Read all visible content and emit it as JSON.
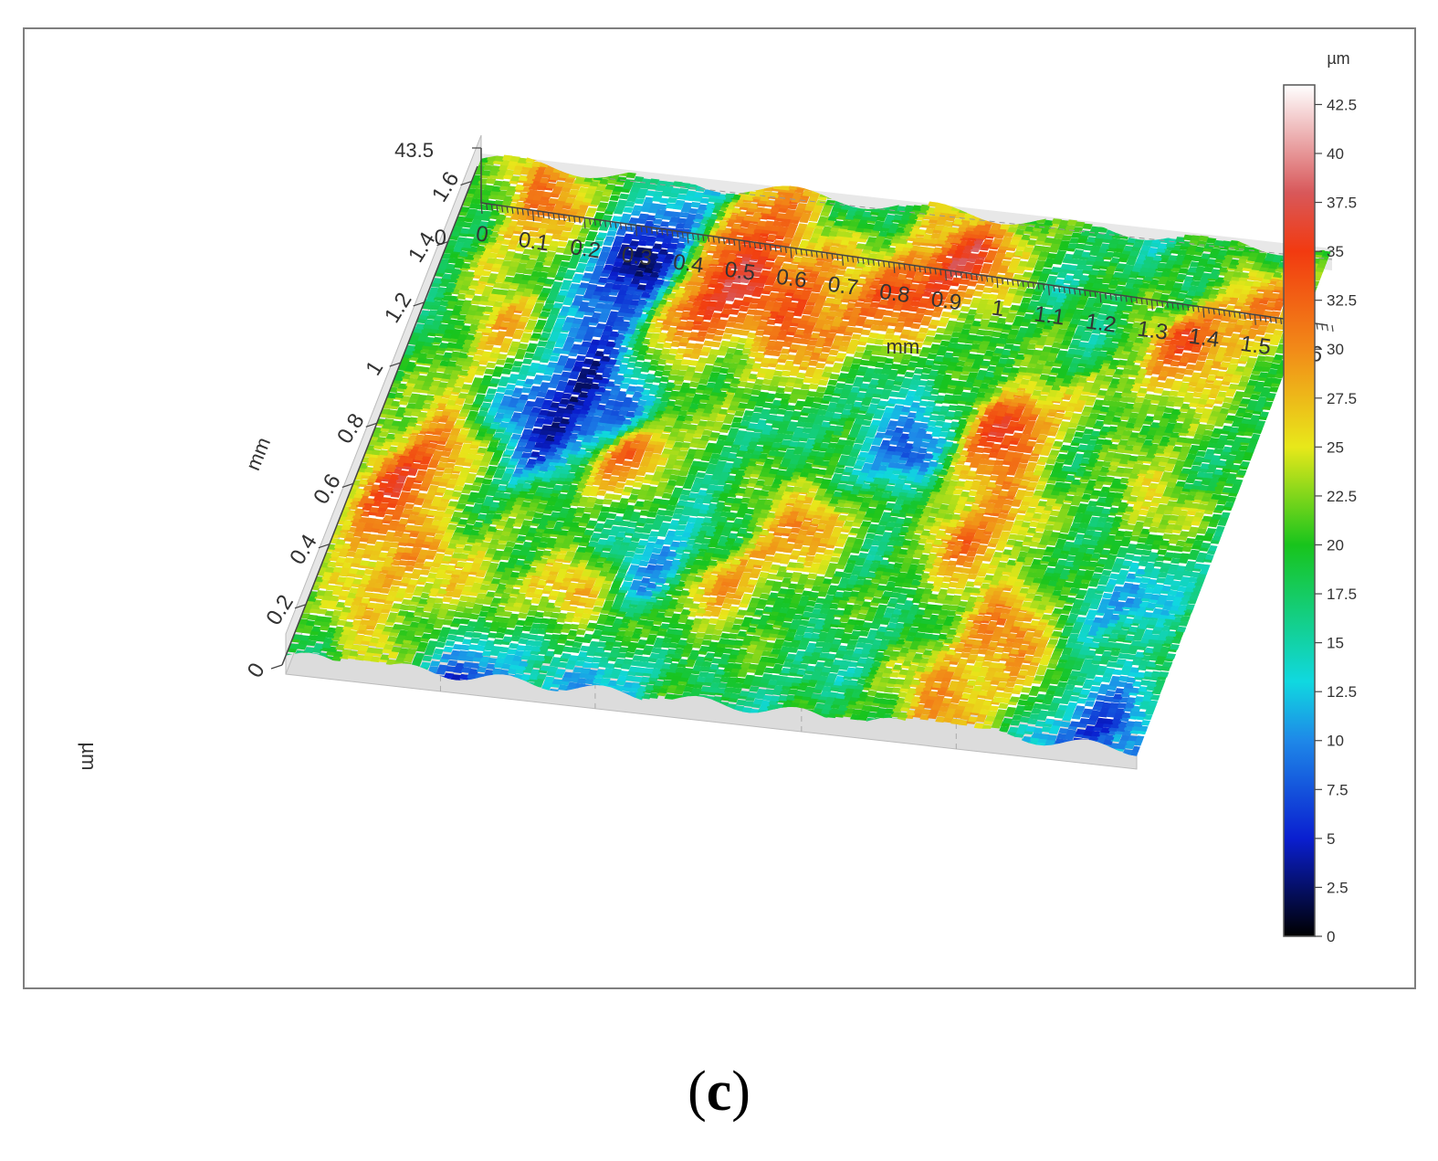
{
  "chart_data": {
    "type": "heatmap",
    "subtype": "3d-surface",
    "x_axis": {
      "label": "mm",
      "range": [
        0,
        1.65
      ],
      "ticks": [
        "0",
        "0.1",
        "0.2",
        "0.3",
        "0.4",
        "0.5",
        "0.6",
        "0.7",
        "0.8",
        "0.9",
        "1",
        "1.1",
        "1.2",
        "1.3",
        "1.4",
        "1.5",
        "1.6"
      ]
    },
    "y_axis": {
      "label": "mm",
      "range": [
        0,
        1.65
      ],
      "ticks": [
        "0",
        "0.2",
        "0.4",
        "0.6",
        "0.8",
        "1",
        "1.2",
        "1.4",
        "1.6"
      ]
    },
    "z_axis": {
      "label": "µm",
      "range": [
        0,
        43.5
      ],
      "ticks": [
        "0",
        "43.5"
      ]
    },
    "colorbar": {
      "unit": "µm",
      "range": [
        0,
        43.5
      ],
      "ticks": [
        "0",
        "2.5",
        "5",
        "7.5",
        "10",
        "12.5",
        "15",
        "17.5",
        "20",
        "22.5",
        "25",
        "27.5",
        "30",
        "32.5",
        "35",
        "37.5",
        "40",
        "42.5"
      ],
      "stops": [
        {
          "value": 0,
          "color": "#000000"
        },
        {
          "value": 5,
          "color": "#0a1fd0"
        },
        {
          "value": 10,
          "color": "#1e88e8"
        },
        {
          "value": 13,
          "color": "#10d8e0"
        },
        {
          "value": 20,
          "color": "#18c41c"
        },
        {
          "value": 25,
          "color": "#e8e81a"
        },
        {
          "value": 30,
          "color": "#f28a18"
        },
        {
          "value": 35,
          "color": "#f23a10"
        },
        {
          "value": 38,
          "color": "#d8585a"
        },
        {
          "value": 43.5,
          "color": "#ffffff"
        }
      ]
    },
    "features": [
      {
        "x": 0.16,
        "y": 0.12,
        "z": 31
      },
      {
        "x": 0.5,
        "y": 0.42,
        "z": 36
      },
      {
        "x": 0.5,
        "y": 0.9,
        "z": 35
      },
      {
        "x": 0.52,
        "y": 1.4,
        "z": 33
      },
      {
        "x": 0.58,
        "y": 0.15,
        "z": 33
      },
      {
        "x": 0.72,
        "y": 0.42,
        "z": 32
      },
      {
        "x": 0.9,
        "y": 0.3,
        "z": 30
      },
      {
        "x": 1.0,
        "y": 0.15,
        "z": 30
      },
      {
        "x": 0.12,
        "y": 0.98,
        "z": 31
      },
      {
        "x": 0.08,
        "y": 1.25,
        "z": 29
      },
      {
        "x": 0.18,
        "y": 0.55,
        "z": 28
      },
      {
        "x": 1.18,
        "y": 0.7,
        "z": 34
      },
      {
        "x": 1.2,
        "y": 1.05,
        "z": 29
      },
      {
        "x": 1.45,
        "y": 0.4,
        "z": 30
      },
      {
        "x": 1.5,
        "y": 0.92,
        "z": 28
      },
      {
        "x": 1.58,
        "y": 0.22,
        "z": 27
      },
      {
        "x": 1.35,
        "y": 1.35,
        "z": 29
      },
      {
        "x": 0.88,
        "y": 1.05,
        "z": 28
      },
      {
        "x": 0.75,
        "y": 1.3,
        "z": 27
      },
      {
        "x": 0.3,
        "y": 1.4,
        "z": 28
      },
      {
        "x": 0.18,
        "y": 1.58,
        "z": 26
      },
      {
        "x": 1.25,
        "y": 1.6,
        "z": 28
      },
      {
        "x": 0.4,
        "y": 0.2,
        "z": 5
      },
      {
        "x": 0.35,
        "y": 0.4,
        "z": 6
      },
      {
        "x": 0.3,
        "y": 0.75,
        "z": 4
      },
      {
        "x": 0.45,
        "y": 0.75,
        "z": 6
      },
      {
        "x": 0.6,
        "y": 1.2,
        "z": 6
      },
      {
        "x": 0.32,
        "y": 1.6,
        "z": 3
      },
      {
        "x": 0.55,
        "y": 1.58,
        "z": 6
      },
      {
        "x": 1.0,
        "y": 0.75,
        "z": 8
      },
      {
        "x": 1.5,
        "y": 1.1,
        "z": 8
      },
      {
        "x": 1.55,
        "y": 1.62,
        "z": 6
      }
    ]
  },
  "caption": {
    "open": "(",
    "letter": "c",
    "close": ")"
  }
}
